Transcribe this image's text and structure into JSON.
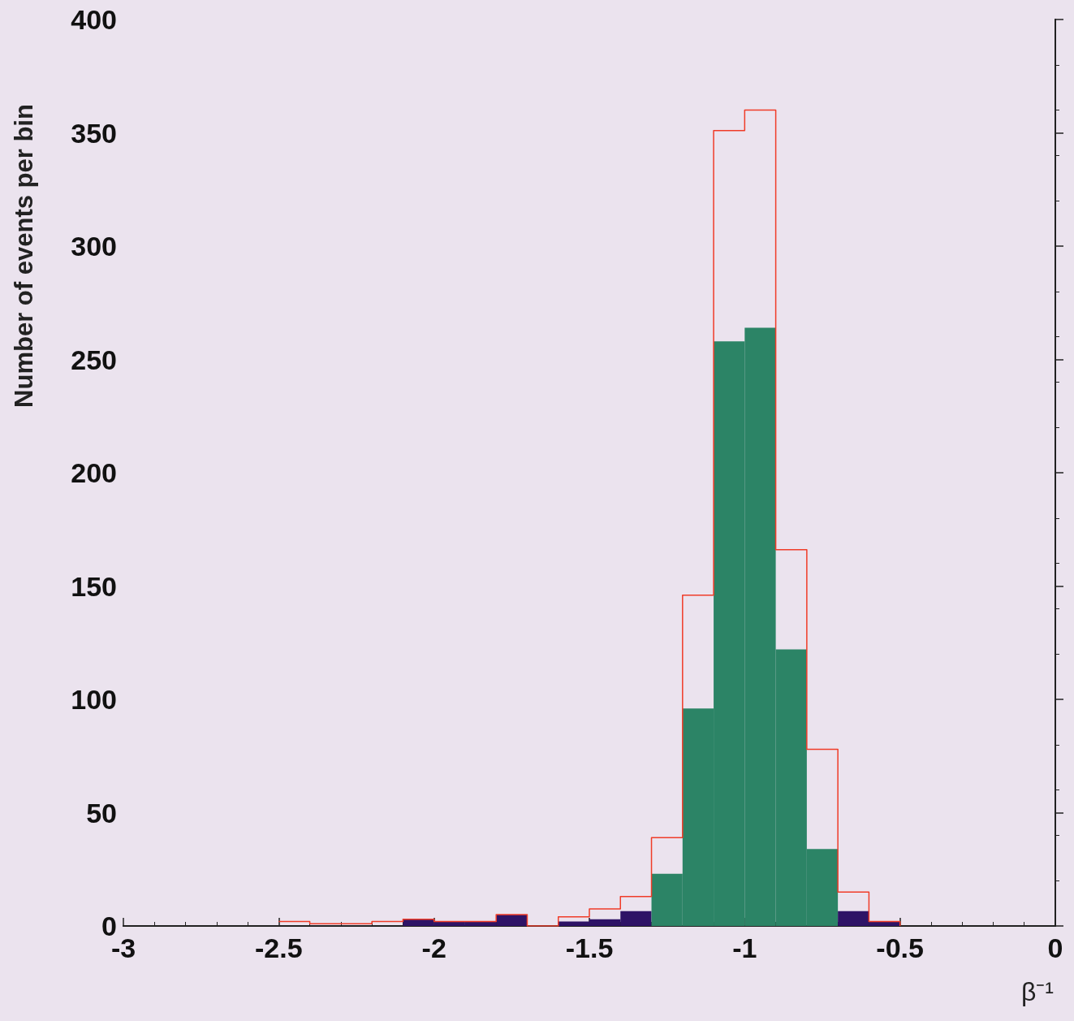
{
  "chart_data": {
    "type": "histogram",
    "xlabel": "β⁻¹",
    "ylabel": "Number of events per bin",
    "bins": [
      -2.5,
      -2.4,
      -2.3,
      -2.2,
      -2.1,
      -2.0,
      -1.9,
      -1.8,
      -1.7,
      -1.6,
      -1.5,
      -1.4,
      -1.3,
      -1.2,
      -1.1,
      -1.0,
      -0.9,
      -0.8,
      -0.7,
      -0.6,
      -0.5
    ],
    "series": [
      {
        "type": "step",
        "color": "#f03c28",
        "x": [
          -2.5,
          -2.4,
          -2.3,
          -2.2,
          -2.1,
          -2.0,
          -1.9,
          -1.8,
          -1.7,
          -1.6,
          -1.5,
          -1.4,
          -1.3,
          -1.2,
          -1.1,
          -1.0,
          -0.9,
          -0.8,
          -0.7,
          -0.6,
          -0.5
        ],
        "values": [
          2,
          1,
          1,
          2,
          3,
          2,
          2,
          5,
          0,
          4,
          7.5,
          13,
          39,
          146,
          351,
          360,
          166,
          78,
          15,
          2,
          0
        ]
      },
      {
        "colors": [
          "#2e1366",
          "#2e1366",
          "#2e1366",
          "#2e1366",
          "#2e1366",
          "#2e1366",
          "#2e1366",
          "#2e1366",
          "#2e1366",
          "#2e1366",
          "#2e1366",
          "#2e1366",
          "#2c8466",
          "#2c8466",
          "#2c8466",
          "#2c8466",
          "#2c8466",
          "#2c8466",
          "#2e1366",
          "#2e1366"
        ],
        "values": [
          0,
          0,
          0,
          0,
          3,
          2,
          2,
          5,
          0,
          2,
          3,
          6.5,
          23,
          96,
          258,
          264,
          122,
          34,
          6.5,
          2
        ]
      }
    ],
    "xlim": [
      -3,
      0
    ],
    "xticks": [
      -3,
      -2.5,
      -2,
      -1.5,
      -1,
      -0.5,
      0
    ],
    "ylim": [
      0,
      400
    ],
    "yticks": [
      0,
      50,
      100,
      150,
      200,
      250,
      300,
      350,
      400
    ],
    "grid": false
  }
}
